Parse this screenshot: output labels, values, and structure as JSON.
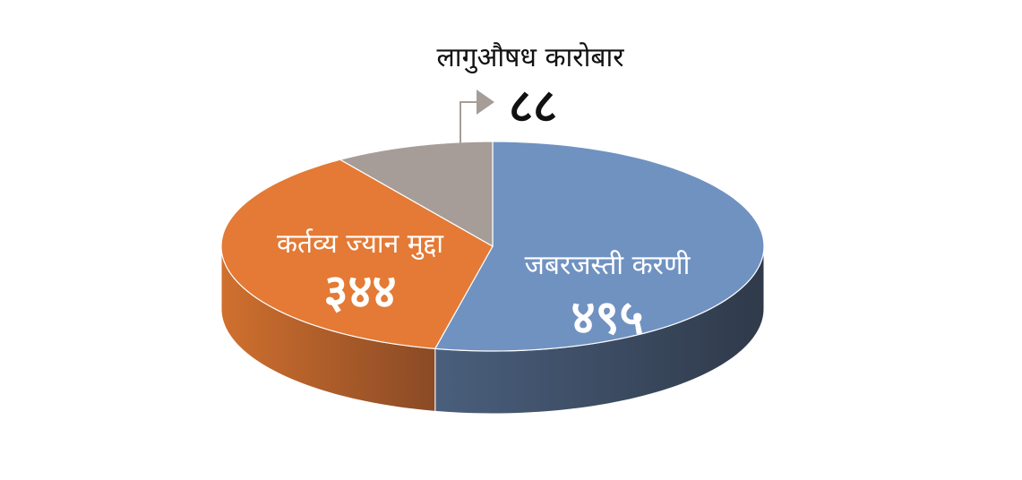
{
  "chart_data": {
    "type": "pie",
    "style": "3d",
    "categories": [
      "जबरजस्ती करणी",
      "कर्तव्य ज्यान मुद्दा",
      "लागुऔषध कारोबार"
    ],
    "values": [
      495,
      344,
      88
    ],
    "value_labels": [
      "४९५",
      "३४४",
      "८८"
    ],
    "colors": [
      "#7092c1",
      "#e47a35",
      "#a69d98"
    ],
    "side_colors": [
      "#3a4a60",
      "#a9582a",
      "#7d7572"
    ],
    "legend": "none"
  }
}
